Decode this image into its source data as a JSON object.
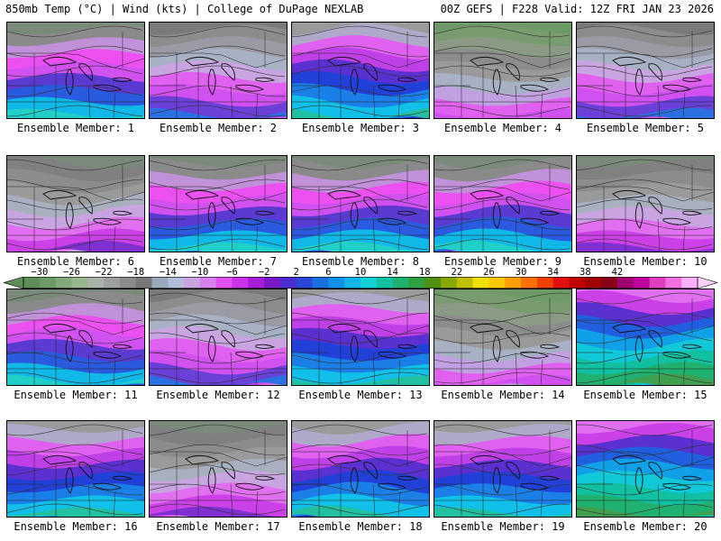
{
  "header": {
    "left": "850mb Temp (°C) | Wind (kts) | College of DuPage NEXLAB",
    "right": "00Z GEFS | F228 Valid: 12Z FRI JAN 23 2026"
  },
  "colorbar": {
    "labels": [
      "−30",
      "−26",
      "−22",
      "−18",
      "−14",
      "−10",
      "−6",
      "−2",
      "2",
      "6",
      "10",
      "14",
      "18",
      "22",
      "26",
      "30",
      "34",
      "38",
      "42"
    ],
    "colors": [
      "#5e8f5a",
      "#6e9a68",
      "#82a87a",
      "#97b68e",
      "#a8b4a8",
      "#9ea0a0",
      "#8c8c8c",
      "#787878",
      "#9aa8bc",
      "#b0bcd8",
      "#c8a4e0",
      "#d680ee",
      "#e050f0",
      "#cc30e8",
      "#a61cd8",
      "#7a18c8",
      "#4a2cd0",
      "#2a48d8",
      "#1a70e0",
      "#1090e8",
      "#10b4e8",
      "#10d0d8",
      "#10c0a0",
      "#20b070",
      "#30a040",
      "#509010",
      "#88a800",
      "#c0c000",
      "#f0e000",
      "#ffc800",
      "#ffa000",
      "#ff7000",
      "#f04000",
      "#e01010",
      "#c00000",
      "#a00000",
      "#880018",
      "#a00070",
      "#c000a0",
      "#e040c0",
      "#f070e0",
      "#ffb0ff"
    ]
  },
  "panels": [
    {
      "label": "Ensemble Member: 1",
      "style": "cold-mid"
    },
    {
      "label": "Ensemble Member: 2",
      "style": "gray-cold"
    },
    {
      "label": "Ensemble Member: 3",
      "style": "cold-deep"
    },
    {
      "label": "Ensemble Member: 4",
      "style": "green-gray"
    },
    {
      "label": "Ensemble Member: 5",
      "style": "gray-cold"
    },
    {
      "label": "Ensemble Member: 6",
      "style": "gray-pink"
    },
    {
      "label": "Ensemble Member: 7",
      "style": "cold-mid"
    },
    {
      "label": "Ensemble Member: 8",
      "style": "cold-mid"
    },
    {
      "label": "Ensemble Member: 9",
      "style": "cold-mid"
    },
    {
      "label": "Ensemble Member: 10",
      "style": "gray-pink"
    },
    {
      "label": "Ensemble Member: 11",
      "style": "cold-mid"
    },
    {
      "label": "Ensemble Member: 12",
      "style": "gray-cold"
    },
    {
      "label": "Ensemble Member: 13",
      "style": "cold-deep"
    },
    {
      "label": "Ensemble Member: 14",
      "style": "green-gray"
    },
    {
      "label": "Ensemble Member: 15",
      "style": "mild"
    },
    {
      "label": "Ensemble Member: 16",
      "style": "cold-deep"
    },
    {
      "label": "Ensemble Member: 17",
      "style": "gray-pink"
    },
    {
      "label": "Ensemble Member: 18",
      "style": "cold-deep"
    },
    {
      "label": "Ensemble Member: 19",
      "style": "cold-deep"
    },
    {
      "label": "Ensemble Member: 20",
      "style": "mild"
    }
  ]
}
